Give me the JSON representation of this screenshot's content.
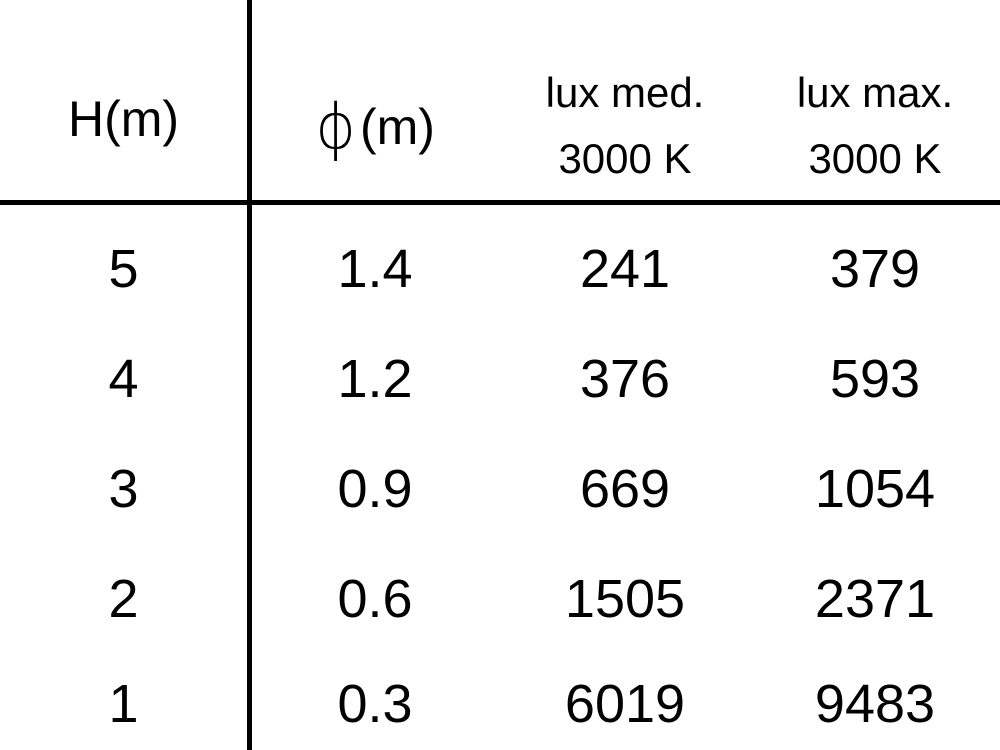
{
  "table": {
    "headers": [
      {
        "label": "H(m)"
      },
      {
        "symbol": "ϕ",
        "label": "(m)"
      },
      {
        "line1": "lux med.",
        "line2": "3000 K"
      },
      {
        "line1": "lux max.",
        "line2": "3000 K"
      }
    ],
    "rows": [
      [
        "5",
        "1.4",
        "241",
        "379"
      ],
      [
        "4",
        "1.2",
        "376",
        "593"
      ],
      [
        "3",
        "0.9",
        "669",
        "1054"
      ],
      [
        "2",
        "0.6",
        "1505",
        "2371"
      ],
      [
        "1",
        "0.3",
        "6019",
        "9483"
      ]
    ]
  }
}
